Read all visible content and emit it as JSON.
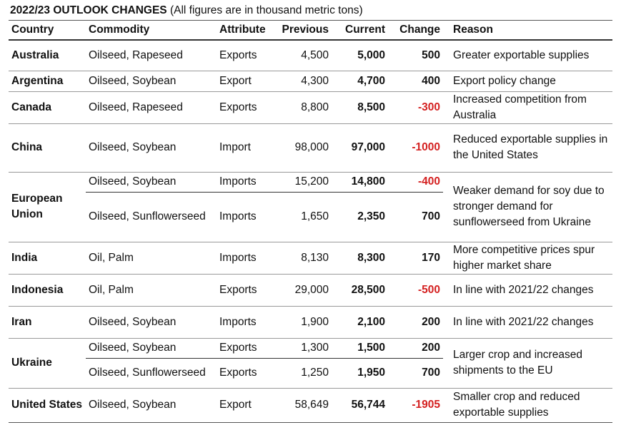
{
  "title": {
    "bold": "2022/23 OUTLOOK CHANGES",
    "note": " (All figures are in thousand metric tons)"
  },
  "headers": [
    "Country",
    "Commodity",
    "Attribute",
    "Previous",
    "Current",
    "Change",
    "Reason"
  ],
  "colors": {
    "negative": "#d42020"
  },
  "rows": [
    {
      "country": "Australia",
      "items": [
        {
          "commodity": "Oilseed, Rapeseed",
          "attribute": "Exports",
          "previous": "4,500",
          "current": "5,000",
          "change": "500"
        }
      ],
      "reason": "Greater exportable supplies"
    },
    {
      "country": "Argentina",
      "items": [
        {
          "commodity": "Oilseed, Soybean",
          "attribute": "Export",
          "previous": "4,300",
          "current": "4,700",
          "change": "400"
        }
      ],
      "reason": "Export policy change"
    },
    {
      "country": "Canada",
      "items": [
        {
          "commodity": "Oilseed, Rapeseed",
          "attribute": "Exports",
          "previous": "8,800",
          "current": "8,500",
          "change": "-300"
        }
      ],
      "reason": "Increased competition from Australia"
    },
    {
      "country": "China",
      "items": [
        {
          "commodity": "Oilseed, Soybean",
          "attribute": "Import",
          "previous": "98,000",
          "current": "97,000",
          "change": "-1000"
        }
      ],
      "reason": "Reduced exportable supplies in the United States"
    },
    {
      "country": "European Union",
      "items": [
        {
          "commodity": "Oilseed, Soybean",
          "attribute": "Imports",
          "previous": "15,200",
          "current": "14,800",
          "change": "-400"
        },
        {
          "commodity": "Oilseed, Sunflowerseed",
          "attribute": "Imports",
          "previous": "1,650",
          "current": "2,350",
          "change": "700"
        }
      ],
      "reason": "Weaker demand for soy due to stronger demand for sunflowerseed from Ukraine"
    },
    {
      "country": "India",
      "items": [
        {
          "commodity": "Oil, Palm",
          "attribute": "Imports",
          "previous": "8,130",
          "current": "8,300",
          "change": "170"
        }
      ],
      "reason": "More competitive prices spur higher market share"
    },
    {
      "country": "Indonesia",
      "items": [
        {
          "commodity": "Oil, Palm",
          "attribute": "Exports",
          "previous": "29,000",
          "current": "28,500",
          "change": "-500"
        }
      ],
      "reason": "In line with 2021/22 changes"
    },
    {
      "country": "Iran",
      "items": [
        {
          "commodity": "Oilseed, Soybean",
          "attribute": "Imports",
          "previous": "1,900",
          "current": "2,100",
          "change": "200"
        }
      ],
      "reason": "In line with 2021/22 changes"
    },
    {
      "country": "Ukraine",
      "items": [
        {
          "commodity": "Oilseed, Soybean",
          "attribute": "Exports",
          "previous": "1,300",
          "current": "1,500",
          "change": "200"
        },
        {
          "commodity": "Oilseed, Sunflowerseed",
          "attribute": "Exports",
          "previous": "1,250",
          "current": "1,950",
          "change": "700"
        }
      ],
      "reason": "Larger crop and increased shipments to the EU"
    },
    {
      "country": "United States",
      "items": [
        {
          "commodity": "Oilseed, Soybean",
          "attribute": "Export",
          "previous": "58,649",
          "current": "56,744",
          "change": "-1905"
        }
      ],
      "reason": "Smaller crop and reduced exportable supplies"
    }
  ]
}
